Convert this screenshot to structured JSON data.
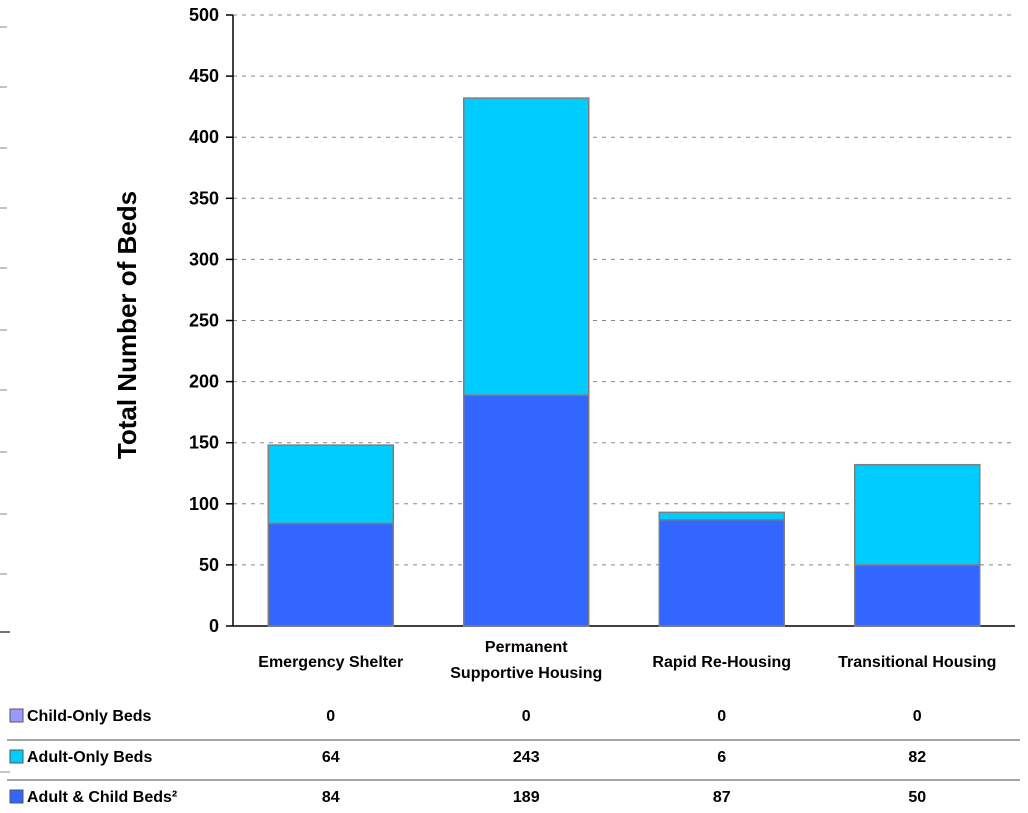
{
  "chart_data": {
    "type": "bar",
    "stacked": true,
    "ylabel": "Total Number of Beds",
    "xlabel": "",
    "ylim": [
      0,
      500
    ],
    "yticks": [
      0,
      50,
      100,
      150,
      200,
      250,
      300,
      350,
      400,
      450,
      500
    ],
    "grid": true,
    "categories": [
      "Emergency Shelter",
      "Permanent Supportive Housing",
      "Rapid Re-Housing",
      "Transitional Housing"
    ],
    "category_lines": [
      [
        "Emergency Shelter"
      ],
      [
        "Permanent",
        "Supportive Housing"
      ],
      [
        "Rapid Re-Housing"
      ],
      [
        "Transitional Housing"
      ]
    ],
    "series": [
      {
        "name": "Adult & Child Beds²",
        "color": "#3366FF",
        "values": [
          84,
          189,
          87,
          50
        ]
      },
      {
        "name": "Adult-Only Beds",
        "color": "#00CCFF",
        "values": [
          64,
          243,
          6,
          82
        ]
      },
      {
        "name": "Child-Only Beds",
        "color": "#9999FF",
        "values": [
          0,
          0,
          0,
          0
        ]
      }
    ],
    "table_rows": [
      {
        "label": "Child-Only Beds",
        "color": "#9999FF",
        "values": [
          "0",
          "0",
          "0",
          "0"
        ]
      },
      {
        "label": "Adult-Only Beds",
        "color": "#00CCFF",
        "values": [
          "64",
          "243",
          "6",
          "82"
        ]
      },
      {
        "label": "Adult & Child Beds²",
        "color": "#3366FF",
        "values": [
          "84",
          "189",
          "87",
          "50"
        ]
      }
    ]
  }
}
